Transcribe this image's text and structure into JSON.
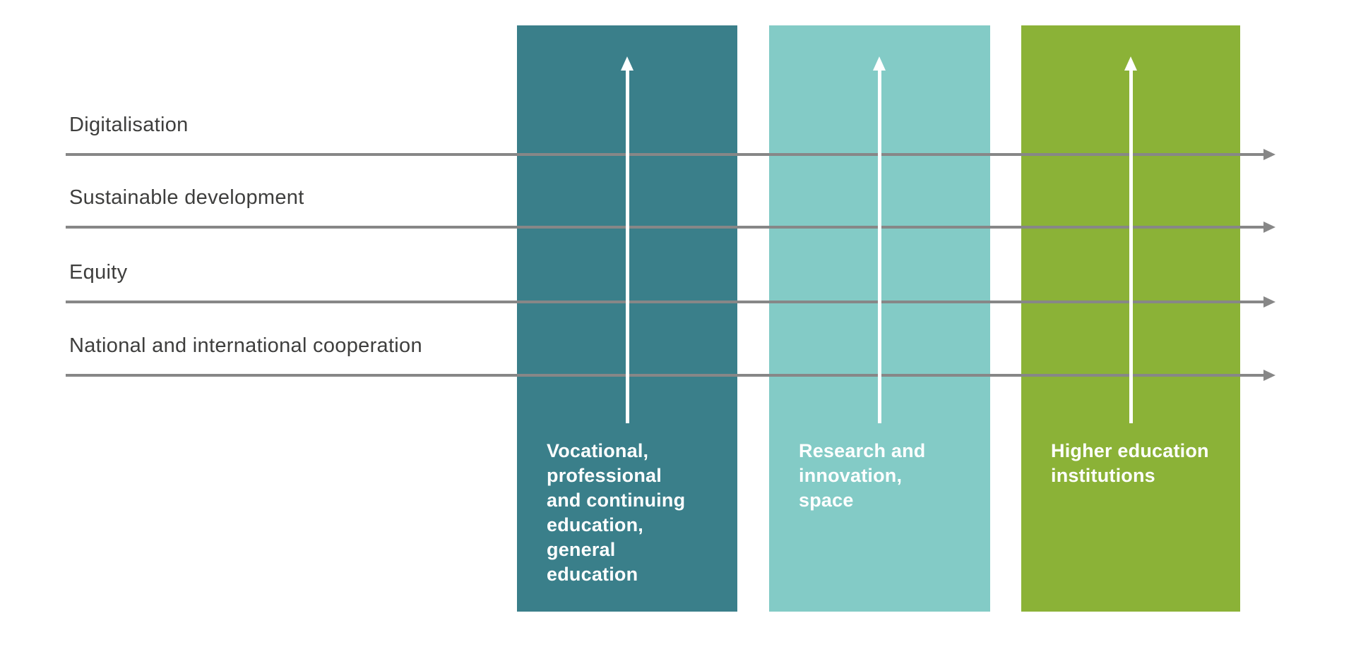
{
  "diagram": {
    "background_color": "#ffffff",
    "cross_cutting_themes": {
      "arrow_color": "#878787",
      "label_color": "#3e3e3d",
      "items": [
        {
          "label": "Digitalisation"
        },
        {
          "label": "Sustainable development"
        },
        {
          "label": "Equity"
        },
        {
          "label": "National and international cooperation"
        }
      ]
    },
    "pillars": {
      "title_color": "#ffffff",
      "arrow_color": "#ffffff",
      "items": [
        {
          "title": "Vocational,\nprofessional\nand continuing\neducation,\ngeneral\neducation",
          "color": "#3a7f8a"
        },
        {
          "title": "Research and\ninnovation,\nspace",
          "color": "#83cbc6"
        },
        {
          "title": "Higher education\ninstitutions",
          "color": "#8bb237"
        }
      ]
    }
  }
}
